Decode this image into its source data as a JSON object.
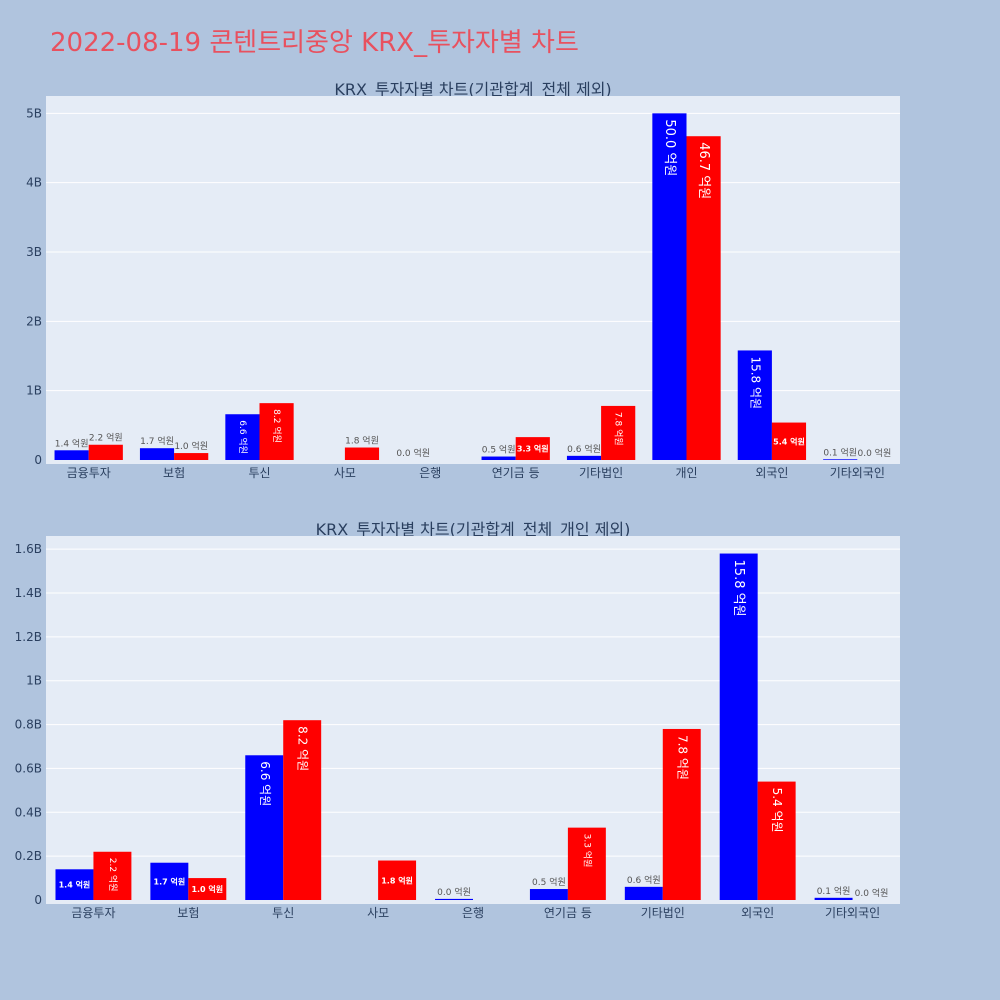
{
  "page": {
    "title": "2022-08-19 콘텐트리중앙 KRX_투자자별 차트"
  },
  "colors": {
    "background": "#b0c4de",
    "plot_bg": "#e5ecf6",
    "series_buy": "#0000ff",
    "series_sell": "#ff0000",
    "title": "#e8515f"
  },
  "chart_data": [
    {
      "type": "bar",
      "title": "KRX_투자자별 차트(기관합계_전체 제외)",
      "categories": [
        "금융투자",
        "보험",
        "투신",
        "사모",
        "은행",
        "연기금 등",
        "기타법인",
        "개인",
        "외국인",
        "기타외국인"
      ],
      "series": [
        {
          "color": "#0000ff",
          "values": [
            0.14,
            0.17,
            0.66,
            0.0,
            0.0,
            0.05,
            0.06,
            5.0,
            1.58,
            0.01
          ],
          "labels": [
            "1.4 억원",
            "1.7 억원",
            "6.6 억원",
            "",
            "0.0 억원",
            "0.5 억원",
            "0.6 억원",
            "50.0 억원",
            "15.8 억원",
            "0.1 억원"
          ]
        },
        {
          "color": "#ff0000",
          "values": [
            0.22,
            0.1,
            0.82,
            0.18,
            0.0,
            0.33,
            0.78,
            4.67,
            0.54,
            0.0
          ],
          "labels": [
            "2.2 억원",
            "1.0 억원",
            "8.2 억원",
            "1.8 억원",
            "",
            "3.3 억원",
            "7.8 억원",
            "46.7 억원",
            "5.4 억원",
            "0.0 억원"
          ]
        }
      ],
      "yticks": [
        0,
        1,
        2,
        3,
        4,
        5
      ],
      "ytick_labels": [
        "0",
        "1B",
        "2B",
        "3B",
        "4B",
        "5B"
      ],
      "ylim": [
        0,
        5.25
      ],
      "unit": "B"
    },
    {
      "type": "bar",
      "title": "KRX_투자자별 차트(기관합계_전체_개인 제외)",
      "categories": [
        "금융투자",
        "보험",
        "투신",
        "사모",
        "은행",
        "연기금 등",
        "기타법인",
        "외국인",
        "기타외국인"
      ],
      "series": [
        {
          "color": "#0000ff",
          "values": [
            0.14,
            0.17,
            0.66,
            0.0,
            0.005,
            0.05,
            0.06,
            1.58,
            0.01
          ],
          "labels": [
            "1.4 억원",
            "1.7 억원",
            "6.6 억원",
            "",
            "0.0 억원",
            "0.5 억원",
            "0.6 억원",
            "15.8 억원",
            "0.1 억원"
          ]
        },
        {
          "color": "#ff0000",
          "values": [
            0.22,
            0.1,
            0.82,
            0.18,
            0.0,
            0.33,
            0.78,
            0.54,
            0.0
          ],
          "labels": [
            "2.2 억원",
            "1.0 억원",
            "8.2 억원",
            "1.8 억원",
            "",
            "3.3 억원",
            "7.8 억원",
            "5.4 억원",
            "0.0 억원"
          ]
        }
      ],
      "yticks": [
        0,
        0.2,
        0.4,
        0.6,
        0.8,
        1.0,
        1.2,
        1.4,
        1.6
      ],
      "ytick_labels": [
        "0",
        "0.2B",
        "0.4B",
        "0.6B",
        "0.8B",
        "1B",
        "1.2B",
        "1.4B",
        "1.6B"
      ],
      "ylim": [
        0,
        1.66
      ],
      "unit": "B"
    }
  ]
}
